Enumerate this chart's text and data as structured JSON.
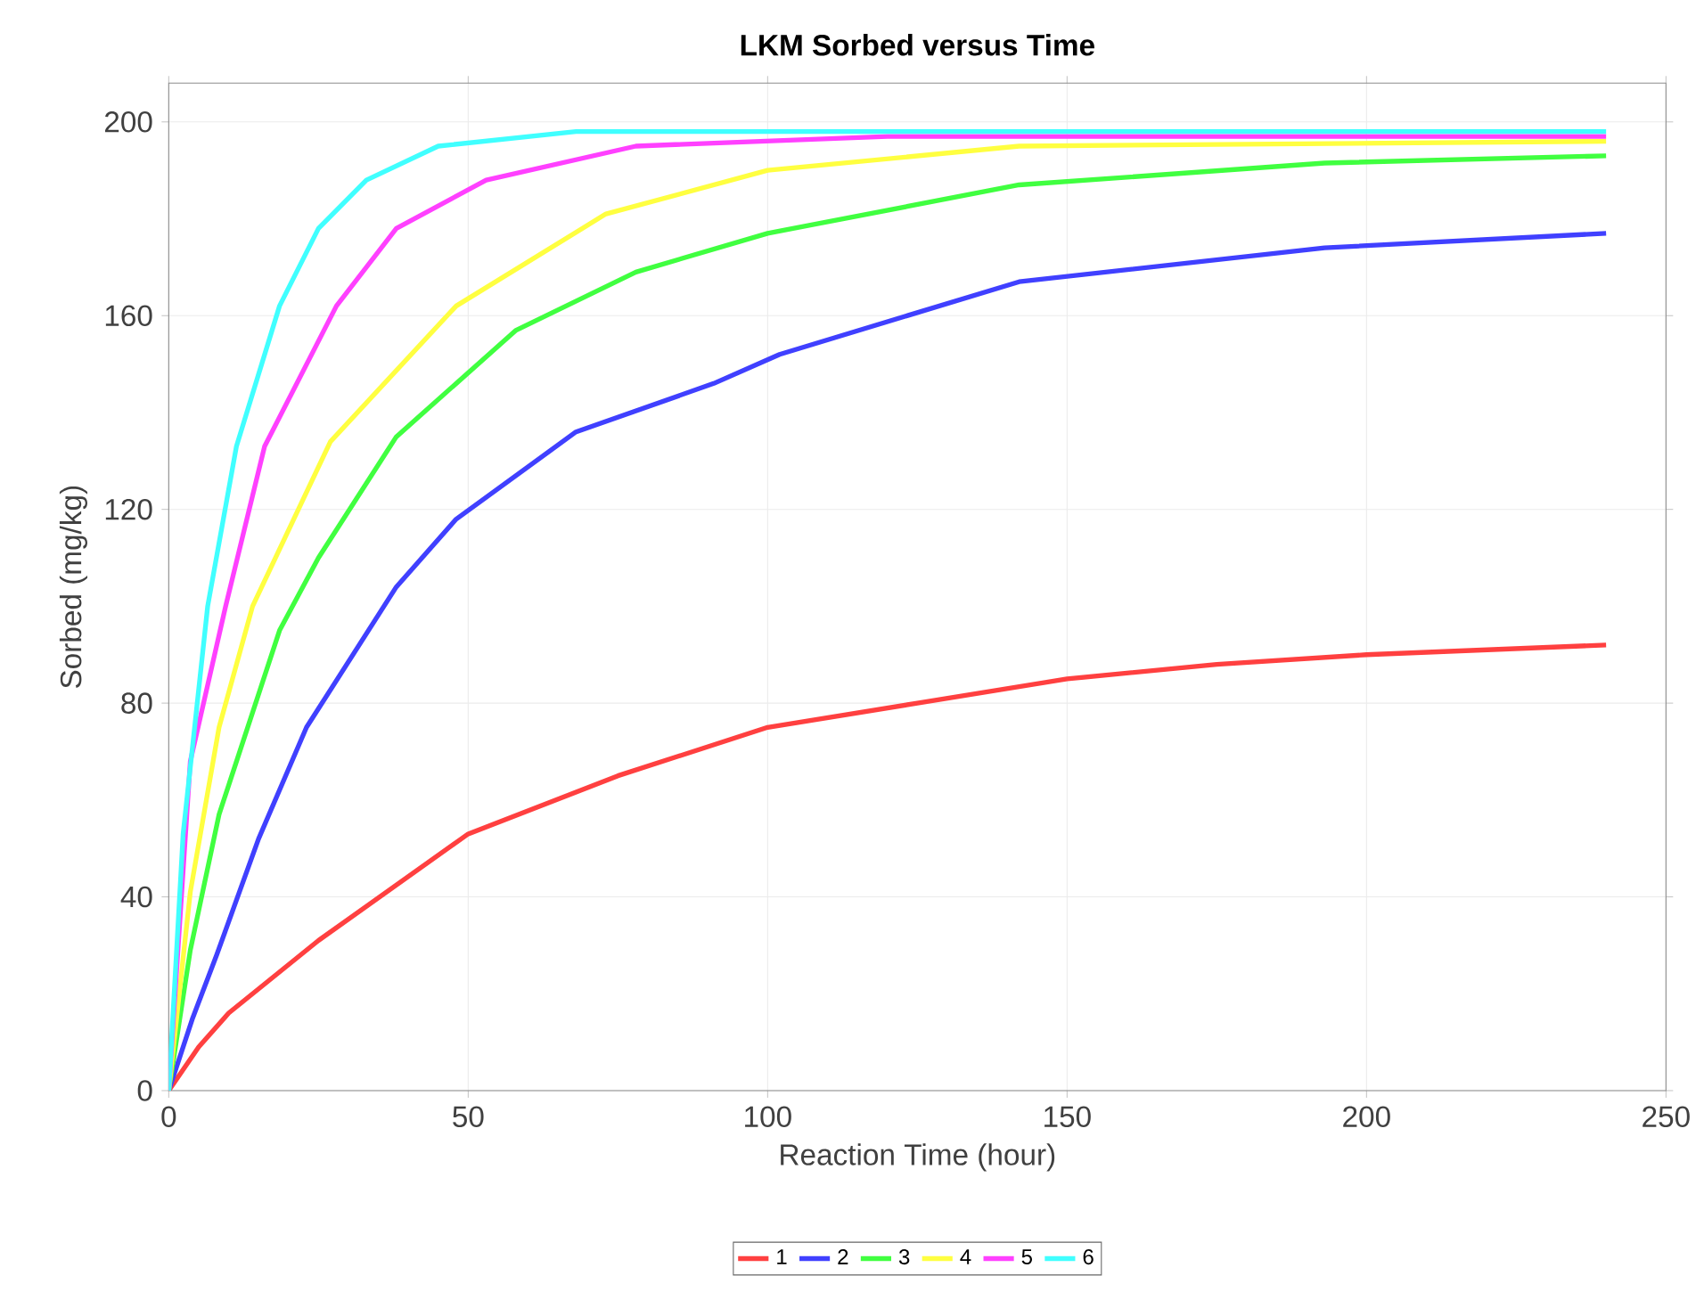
{
  "chart_data": {
    "type": "line",
    "title": "LKM Sorbed versus Time",
    "xlabel": "Reaction Time (hour)",
    "ylabel": "Sorbed (mg/kg)",
    "xlim": [
      0,
      250
    ],
    "ylim": [
      0,
      208
    ],
    "xticks": [
      0,
      50,
      100,
      150,
      200,
      250
    ],
    "yticks": [
      0,
      40,
      80,
      120,
      160,
      200
    ],
    "grid": true,
    "legend": "bottom",
    "series": [
      {
        "name": "1",
        "color": "#ff4040",
        "x": [
          0,
          5,
          10,
          25,
          50,
          75,
          100,
          125,
          150,
          175,
          200,
          240
        ],
        "values": [
          0,
          9,
          16,
          31,
          53,
          65,
          75,
          80,
          85,
          88,
          90,
          92
        ]
      },
      {
        "name": "2",
        "color": "#4040ff",
        "x": [
          0,
          4,
          8,
          15,
          23,
          38,
          48,
          68,
          91,
          102,
          142,
          193,
          240
        ],
        "values": [
          0,
          15,
          28,
          52,
          75,
          104,
          118,
          136,
          146,
          152,
          167,
          174,
          177
        ]
      },
      {
        "name": "3",
        "color": "#40ff40",
        "x": [
          0,
          3.6,
          8.4,
          18.5,
          25,
          38,
          58,
          78,
          100,
          142,
          193,
          240
        ],
        "values": [
          0,
          29,
          57,
          95,
          110,
          135,
          157,
          169,
          177,
          187,
          191.5,
          193
        ]
      },
      {
        "name": "4",
        "color": "#ffff40",
        "x": [
          0,
          3.6,
          8.4,
          14,
          27,
          48,
          73,
          100,
          142,
          240
        ],
        "values": [
          0,
          41,
          75,
          100,
          134,
          162,
          181,
          190,
          195,
          196
        ]
      },
      {
        "name": "5",
        "color": "#ff40ff",
        "x": [
          0,
          3.6,
          9.5,
          16,
          28,
          38,
          53,
          78,
          120,
          240
        ],
        "values": [
          0,
          68,
          100,
          133,
          162,
          178,
          188,
          195,
          197,
          197
        ]
      },
      {
        "name": "6",
        "color": "#40ffff",
        "x": [
          0,
          2.4,
          6.5,
          11.3,
          18.5,
          25,
          33,
          45,
          68,
          240
        ],
        "values": [
          0,
          53,
          100,
          133,
          162,
          178,
          188,
          195,
          198,
          198
        ]
      }
    ]
  }
}
